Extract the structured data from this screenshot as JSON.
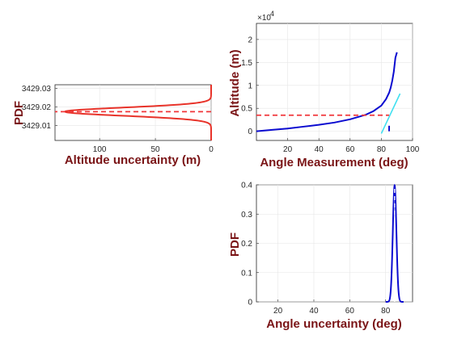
{
  "colors": {
    "label": "#7a1416",
    "axis": "#262626",
    "grid": "#e6e6e6",
    "pdf_curve": "#e8332a",
    "dashed_mean": "#f0363a",
    "altitude_curve": "#0b0bd0",
    "tangent_line": "#40e0f0",
    "angle_pdf_curve": "#0b0bd0"
  },
  "chart_data": [
    {
      "id": "altitude-pdf",
      "type": "line",
      "xlabel": "Altitude uncertainty (m)",
      "ylabel": "PDF",
      "x_reversed": true,
      "xlim": [
        0,
        140
      ],
      "ylim": [
        3429.002,
        3429.032
      ],
      "xticks": [
        100,
        50,
        0
      ],
      "yticks": [
        3429.01,
        3429.02,
        3429.03
      ],
      "grid": true,
      "series": [
        {
          "kind": "gaussian",
          "style": "solid",
          "peak_x": 131,
          "center_y": 3429.0175,
          "sigma_y": 0.0022,
          "baseline_x": 0
        },
        {
          "kind": "hline",
          "style": "dashed",
          "y": 3429.0175
        }
      ]
    },
    {
      "id": "altitude-vs-angle",
      "type": "line",
      "xlabel": "Angle Measurement (deg)",
      "ylabel": "Altitude (m)",
      "y_exponent_label": "×10",
      "y_exponent_value": "4",
      "xlim": [
        0,
        100
      ],
      "ylim": [
        -0.2,
        2.35
      ],
      "xticks": [
        20,
        40,
        60,
        80,
        100
      ],
      "yticks": [
        0,
        0.5,
        1,
        1.5,
        2
      ],
      "grid": true,
      "series": [
        {
          "kind": "curve",
          "style": "solid",
          "points": [
            [
              0,
              0.0
            ],
            [
              10,
              0.03
            ],
            [
              20,
              0.06
            ],
            [
              30,
              0.1
            ],
            [
              40,
              0.14
            ],
            [
              50,
              0.19
            ],
            [
              60,
              0.26
            ],
            [
              70,
              0.36
            ],
            [
              75,
              0.44
            ],
            [
              80,
              0.56
            ],
            [
              83,
              0.7
            ],
            [
              85,
              0.84
            ],
            [
              86,
              0.95
            ],
            [
              87,
              1.1
            ],
            [
              88,
              1.3
            ],
            [
              89,
              1.6
            ],
            [
              90,
              1.72
            ]
          ]
        },
        {
          "kind": "hline",
          "style": "dashed",
          "x_range": [
            0,
            85
          ],
          "y": 0.35
        },
        {
          "kind": "segment",
          "style": "solid",
          "points": [
            [
              80,
              -0.05
            ],
            [
              92,
              0.82
            ]
          ]
        },
        {
          "kind": "segment",
          "style": "solid",
          "points": [
            [
              85,
              0.0
            ],
            [
              85,
              0.12
            ]
          ]
        }
      ]
    },
    {
      "id": "angle-pdf",
      "type": "line",
      "xlabel": "Angle uncertainty (deg)",
      "ylabel": "PDF",
      "xlim": [
        8,
        95
      ],
      "ylim": [
        0,
        0.4
      ],
      "xticks": [
        20,
        40,
        60,
        80
      ],
      "yticks": [
        0,
        0.1,
        0.2,
        0.3,
        0.4
      ],
      "grid": true,
      "series": [
        {
          "kind": "gaussian",
          "style": "solid",
          "mu": 85,
          "sigma": 1.0,
          "peak": 0.398
        },
        {
          "kind": "vline",
          "style": "dashed",
          "x": 85,
          "y_range": [
            0,
            0.395
          ]
        }
      ]
    }
  ]
}
